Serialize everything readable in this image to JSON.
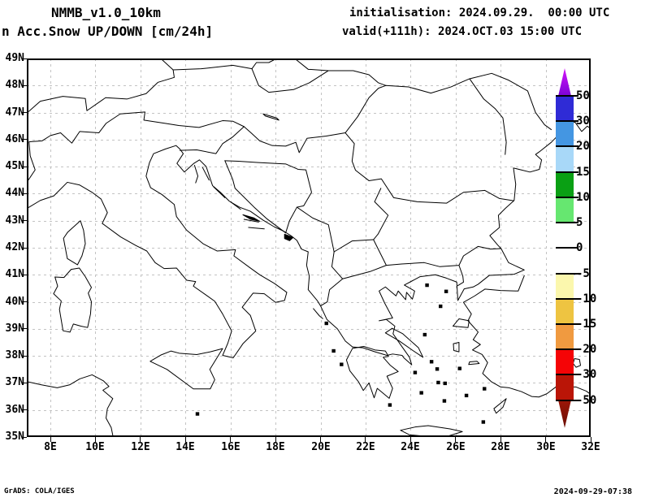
{
  "header": {
    "model": "NMMB_v1.0_10km",
    "product": "n Acc.Snow UP/DOWN [cm/24h]",
    "init_label": "initialisation: 2024.09.29.  00:00 UTC",
    "valid_label": "valid(+111h): 2024.OCT.03 15:00 UTC"
  },
  "footer": {
    "left": "GrADS: COLA/IGES",
    "right": "2024-09-29-07:38"
  },
  "axes": {
    "lat_ticks": [
      {
        "value": 49,
        "label": "49N"
      },
      {
        "value": 48,
        "label": "48N"
      },
      {
        "value": 47,
        "label": "47N"
      },
      {
        "value": 46,
        "label": "46N"
      },
      {
        "value": 45,
        "label": "45N"
      },
      {
        "value": 44,
        "label": "44N"
      },
      {
        "value": 43,
        "label": "43N"
      },
      {
        "value": 42,
        "label": "42N"
      },
      {
        "value": 41,
        "label": "41N"
      },
      {
        "value": 40,
        "label": "40N"
      },
      {
        "value": 39,
        "label": "39N"
      },
      {
        "value": 38,
        "label": "38N"
      },
      {
        "value": 37,
        "label": "37N"
      },
      {
        "value": 36,
        "label": "36N"
      },
      {
        "value": 35,
        "label": "35N"
      }
    ],
    "lon_ticks": [
      {
        "value": 8,
        "label": "8E"
      },
      {
        "value": 10,
        "label": "10E"
      },
      {
        "value": 12,
        "label": "12E"
      },
      {
        "value": 14,
        "label": "14E"
      },
      {
        "value": 16,
        "label": "16E"
      },
      {
        "value": 18,
        "label": "18E"
      },
      {
        "value": 20,
        "label": "20E"
      },
      {
        "value": 22,
        "label": "22E"
      },
      {
        "value": 24,
        "label": "24E"
      },
      {
        "value": 26,
        "label": "26E"
      },
      {
        "value": 28,
        "label": "28E"
      },
      {
        "value": 30,
        "label": "30E"
      },
      {
        "value": 32,
        "label": "32E"
      }
    ]
  },
  "colorbar": {
    "unit": "cm/24h",
    "levels": [
      "50",
      "30",
      "20",
      "15",
      "10",
      "5",
      "0",
      "-5",
      "-10",
      "-15",
      "-20",
      "-30",
      "-50"
    ],
    "segment_colors": [
      "#2f2bd6",
      "#4496e2",
      "#a8d8f8",
      "#0aa014",
      "#66e770",
      "transparent",
      "transparent",
      "#fbf7ad",
      "#eec441",
      "#f09a40",
      "#f50406",
      "#ba1507"
    ],
    "arrow_top_tip_color": "#d414fa",
    "arrow_top_base_color": "#7a03d6",
    "arrow_bottom_base_color": "#9c1608",
    "arrow_bottom_tip_color": "#6b0f04"
  },
  "map": {
    "stroke_color": "#000000",
    "grid_color": "#c3c3c3",
    "coastlines": [
      "M 6.95 -37.05 L 7.6 -36.93 L 8.3 -36.82 L 8.85 -36.93 L 9.3 -37.15 L 9.85 -37.3 L 10.35 -37.08 L 10.6 -36.87 L 10.33 -36.73 L 10.77 -36.42 L 10.53 -36.05 L 10.47 -35.7 L 10.7 -35.35 L 10.78 -35.02",
      "M 8.2 -40.92 L 8.32 -40.58 L 8.14 -40.3 L 8.48 -40.03 L 8.4 -39.72 L 8.56 -38.93 L 8.87 -38.88 L 9.02 -39.18 L 9.35 -39.1 L 9.65 -39.05 L 9.78 -39.55 L 9.82 -40.0 L 9.68 -40.32 L 9.82 -40.53 L 9.55 -40.93 L 9.28 -41.25 L 8.92 -41.2 L 8.6 -40.9 Z",
      "M 8.58 -42.35 L 8.75 -41.6 L 9.2 -41.37 L 9.4 -41.7 L 9.55 -42.15 L 9.47 -42.65 L 9.33 -43.0 L 8.77 -42.58 Z",
      "M 6.95 -43.45 L 7.55 -43.75 L 8.15 -43.92 L 8.75 -44.42 L 9.3 -44.32 L 9.85 -44.05 L 10.25 -43.8 L 10.53 -43.3 L 10.3 -42.9 L 11.12 -42.4 L 11.8 -42.08 L 12.28 -41.88 L 12.65 -41.45 L 13.05 -41.23 L 13.6 -41.25 L 14.05 -40.8 L 14.45 -40.75 L 14.35 -40.58 L 14.95 -40.23 L 15.3 -40.02 L 15.65 -39.55 L 16.05 -38.92 L 15.88 -38.47 L 15.65 -38.02 L 16.12 -37.93 L 16.55 -38.45 L 17.12 -38.92 L 16.88 -39.5 L 16.52 -39.8 L 17.0 -40.32 L 17.5 -40.3 L 18.0 -39.98 L 18.4 -40.05 L 18.5 -40.35 L 17.95 -40.68 L 17.3 -41.0 L 16.85 -41.27 L 16.15 -41.7 L 16.22 -41.93 L 15.4 -41.88 L 14.78 -42.15 L 14.05 -42.65 L 13.6 -43.15 L 13.5 -43.6 L 12.95 -43.97 L 12.45 -44.22 L 12.25 -44.65 L 12.4 -45.15 L 12.58 -45.48 L 13.1 -45.65 L 13.58 -45.78 L 13.75 -45.65 L 13.9 -45.48 L 13.62 -45.12 L 13.95 -44.8 L 14.37 -45.12 L 14.62 -45.25 L 14.92 -45.0 L 15.2 -44.3 L 15.55 -44.05 L 15.95 -43.72 L 16.4 -43.5 L 16.88 -43.35 L 17.45 -43.02 L 17.95 -42.77 L 18.35 -42.62 L 18.68 -42.45 L 18.95 -42.27 L 19.15 -41.95 L 19.45 -41.85 L 19.38 -41.35 L 19.5 -40.95 L 19.45 -40.45 L 19.85 -40.05 L 20.0 -39.85 L 20.28 -39.35 L 20.75 -39.0 L 21.1 -38.55 L 21.42 -38.33",
      "M 21.42 -38.33 L 21.88 -38.3 L 22.42 -38.15 L 22.95 -38.02 L 23.2 -38.07 L 23.62 -38.02 L 23.7 -37.93 L 24.05 -37.67 L 23.95 -37.95 L 23.55 -38.42 L 23.22 -38.82 L 23.3 -39.1 L 22.92 -39.35 L 22.6 -39.3 L 23.2 -39.4 L 22.85 -39.95 L 22.6 -40.4 L 22.88 -40.55 L 23.35 -40.22 L 23.45 -40.4 L 23.78 -40.08 L 23.82 -40.35 L 24.08 -40.1 L 24.18 -40.4 L 23.72 -40.62 L 24.42 -40.93 L 25.1 -41.0 L 25.58 -40.88 L 26.05 -40.73 L 26.1 -40.05 L 26.38 -40.48 L 26.78 -40.55 L 27.0 -40.65 L 27.5 -40.98 L 28.6 -41.02 L 29.05 -41.18 L 28.35 -41.45 L 28.02 -41.97 L 27.87 -42.1 L 27.52 -42.45 L 27.95 -42.75 L 27.9 -43.2 L 28.2 -43.45 L 28.6 -43.75 L 28.67 -44.35 L 28.57 -44.95 L 29.3 -44.8 L 29.72 -44.9 L 29.82 -45.25 L 29.55 -45.45 L 29.72 -45.55 L 30.25 -45.9 L 30.6 -46.2 L 30.78 -46.5 L 31.3 -46.65 L 31.6 -46.3 L 31.85 -46.5 L 32.0 -46.4",
      "M 29.05 -40.97 L 28.78 -40.4 L 28.0 -40.42 L 27.3 -40.47 L 26.85 -40.22 L 26.35 -39.98 L 26.7 -39.55 L 26.55 -39.3 L 27.0 -38.88 L 26.78 -38.6 L 27.1 -38.42 L 26.75 -38.22 L 27.18 -38.05 L 27.42 -37.75 L 27.2 -37.35 L 27.58 -37.05 L 28.0 -36.85 L 28.38 -36.82 L 28.92 -36.68 L 29.38 -36.5 L 29.7 -36.48 L 30.05 -36.6 L 30.45 -36.85 L 30.6 -37.05 L 30.88 -36.85 L 31.35 -36.85 L 31.8 -36.7 L 32.0 -36.58",
      "M 21.42 -38.28 L 21.15 -37.85 L 21.3 -37.45 L 21.68 -37.05 L 21.9 -36.72 L 22.15 -37.0 L 22.38 -36.45 L 22.52 -36.8 L 23.05 -36.43 L 23.2 -36.8 L 22.95 -37.25 L 23.45 -37.42 L 23.1 -37.65 L 22.78 -37.95 L 23.02 -37.98 L 22.88 -38.18 L 22.42 -38.22 L 21.92 -38.35 Z",
      "M 23.55 -35.25 L 24.2 -35.37 L 24.78 -35.42 L 25.75 -35.3 L 26.3 -35.2 L 25.72 -35.05 L 24.78 -35.02 L 23.95 -35.08 Z",
      "M 12.43 -37.8 L 12.9 -38.03 L 13.35 -38.18 L 13.72 -38.1 L 14.5 -38.05 L 15.1 -38.15 L 15.65 -38.27 L 15.08 -37.5 L 15.3 -37.12 L 15.1 -36.78 L 14.35 -36.78 L 13.18 -37.5 Z",
      "M 22.88 -38.85 L 23.5 -38.55 L 24.1 -38.2 L 24.55 -37.95 L 24.35 -38.3 L 23.65 -38.82 L 23.18 -39.02 Z",
      "M 25.88 -39.1 L 26.55 -39.05 L 26.6 -39.3 L 26.15 -39.37 Z",
      "M 25.92 -38.2 L 26.15 -38.15 L 26.15 -38.5 L 25.9 -38.45 Z",
      "M 27.7 -36.05 L 28.25 -36.42 L 28.1 -36.1 L 27.8 -35.88 Z",
      "M 26.58 -37.68 L 27.05 -37.72 L 26.95 -37.8 L 26.62 -37.78 Z",
      "M 19.68 -39.75 L 19.95 -39.48 L 20.1 -39.38",
      "M 14.4 -45.05 L 14.55 -44.65 L 14.45 -44.4",
      "M 14.75 -44.98 L 15.05 -44.5",
      "M 15.25 -44.25 L 15.75 -43.85",
      "M 16.0 -43.7 L 16.45 -43.42",
      "M 16.6 -43.05 L 17.25 -42.95",
      "M 16.8 -42.75 L 17.5 -42.7",
      "M 17.45 -46.95 L 18.05 -46.8 L 18.15 -46.72 L 17.55 -46.87 Z",
      "M 31.28 -37.9 L 31.5 -37.87 L 31.55 -37.65 L 31.35 -37.58 L 31.22 -37.72 Z",
      "M 30.85 -38.25 L 30.95 -38.0 L 30.8 -37.95 L 30.75 -38.2 Z"
    ],
    "borders": [
      "M 6.95 -44.42 L 7.32 -44.88 L 7.1 -45.4 L 7.05 -45.92 L 7.62 -45.95 L 8.0 -46.15 L 8.45 -46.25 L 8.95 -45.87 L 9.3 -46.3 L 10.15 -46.25 L 10.47 -46.6 L 11.1 -46.95 L 12.2 -47.02 L 12.15 -46.72 L 13.1 -46.6 L 13.7 -46.52 L 14.6 -46.45 L 15.65 -46.7 L 16.1 -46.68 L 16.6 -46.48",
      "M 13.75 -45.6 L 14.5 -45.62 L 15.35 -45.48 L 15.65 -45.85 L 16.1 -46.1 L 16.6 -46.48",
      "M 6.95 -46.98 L 7.55 -47.42 L 8.55 -47.6 L 9.55 -47.52 L 9.62 -47.07 L 10.45 -47.55 L 11.4 -47.5 L 12.25 -47.7 L 12.78 -48.12 L 13.5 -48.3 L 13.45 -48.58 L 14.7 -48.62 L 16.1 -48.75 L 16.95 -48.62",
      "M 13.45 -48.58 L 12.9 -49.0",
      "M 16.95 -48.62 L 17.15 -48.85 L 17.7 -48.85 L 18.05 -49.0",
      "M 18.85 -49.0 L 19.45 -48.6 L 20.35 -48.55 L 21.45 -48.55 L 22.15 -48.4 L 22.57 -48.1 L 22.9 -48.0",
      "M 16.95 -48.62 L 17.25 -48.0 L 17.7 -47.75 L 18.8 -47.85 L 19.5 -48.1 L 20.35 -48.55",
      "M 16.6 -46.48 L 16.95 -46.22 L 17.3 -45.95 L 17.85 -45.78 L 18.45 -45.76 L 18.9 -45.9 L 19.05 -45.52 L 19.4 -46.05 L 20.25 -46.13 L 21.1 -46.25",
      "M 21.1 -46.25 L 21.65 -46.85 L 22.15 -47.55 L 22.57 -47.9 L 22.9 -48.0",
      "M 22.9 -48.0 L 23.9 -47.95 L 24.9 -47.72 L 25.8 -47.95 L 26.2 -48.1 L 26.62 -48.25 L 27.25 -47.5 L 27.75 -47.15 L 28.1 -46.8 L 28.25 -45.9 L 28.2 -45.45",
      "M 26.62 -48.25 L 27.6 -48.45 L 28.35 -48.2 L 29.2 -47.8 L 29.55 -47.0 L 29.95 -46.55 L 30.25 -46.37",
      "M 15.75 -45.22 L 16.35 -45.2 L 17.25 -45.15 L 18.45 -45.1 L 19.0 -44.9 L 19.35 -44.88 L 19.6 -44.05 L 19.25 -43.55 L 18.95 -43.5 L 18.62 -43.0 L 18.45 -42.55",
      "M 15.75 -45.22 L 16.1 -44.52 L 16.2 -44.2 L 17.05 -43.5 L 17.6 -43.08 L 18.45 -42.55",
      "M 21.1 -46.25 L 21.5 -45.85 L 21.4 -45.2 L 21.55 -44.87 L 22.15 -44.48 L 22.7 -44.55 L 23.25 -43.85 L 24.3 -43.7 L 25.6 -43.65 L 26.35 -44.05 L 27.3 -44.12 L 27.95 -43.82 L 28.58 -43.74",
      "M 22.68 -44.2 L 22.4 -43.7 L 23.0 -43.2 L 22.55 -42.5 L 22.35 -42.3",
      "M 22.35 -42.3 L 22.92 -41.35 L 23.6 -41.4 L 24.6 -41.45 L 25.3 -41.3 L 26.15 -41.35 L 26.35 -41.7 L 27.0 -42.05 L 27.55 -41.95 L 28.02 -41.97",
      "M 26.15 -41.35 L 26.32 -40.95 L 26.35 -40.73 L 26.1 -40.6",
      "M 18.95 -43.5 L 19.65 -43.1 L 20.35 -42.85 L 20.6 -41.85 L 20.5 -41.3 L 20.98 -40.85 L 20.4 -40.45 L 20.3 -40.0 L 20.0 -39.85",
      "M 20.6 -41.85 L 21.4 -42.25 L 22.35 -42.3",
      "M 20.98 -40.85 L 22.2 -41.12 L 22.92 -41.35"
    ],
    "island_dots": [
      [
        14.45,
        35.92
      ],
      [
        24.65,
        40.68
      ],
      [
        25.5,
        40.45
      ],
      [
        25.25,
        39.9
      ],
      [
        24.55,
        38.85
      ],
      [
        24.85,
        37.85
      ],
      [
        25.1,
        37.58
      ],
      [
        25.45,
        37.05
      ],
      [
        25.15,
        37.08
      ],
      [
        24.4,
        36.7
      ],
      [
        25.42,
        36.4
      ],
      [
        27.2,
        36.85
      ],
      [
        23.0,
        36.25
      ],
      [
        27.15,
        35.62
      ],
      [
        26.1,
        37.6
      ],
      [
        20.5,
        38.25
      ],
      [
        20.85,
        37.75
      ],
      [
        20.18,
        39.27
      ],
      [
        26.4,
        36.6
      ],
      [
        24.12,
        37.45
      ]
    ],
    "filled_blobs": [
      "M 18.4 -42.5 L 18.78 -42.38 L 18.62 -42.26 L 18.4 -42.34 Z",
      "M 16.55 -43.22 L 17.05 -43.1 L 17.3 -42.98 L 16.9 -43.05 Z"
    ]
  }
}
